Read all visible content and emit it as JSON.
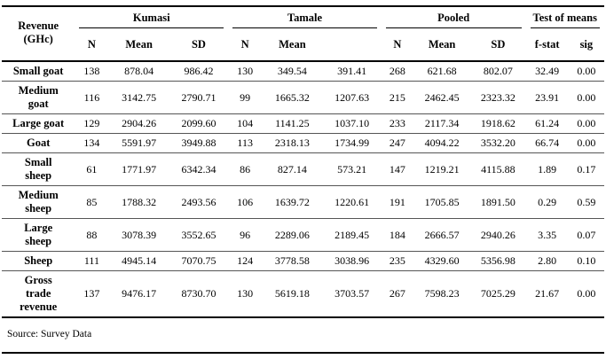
{
  "table": {
    "row_header": {
      "line1": "Revenue",
      "line2": "(GHc)"
    },
    "groups": [
      {
        "label": "Kumasi",
        "columns": [
          "N",
          "Mean",
          "SD"
        ]
      },
      {
        "label": "Tamale",
        "columns": [
          "N",
          "Mean",
          ""
        ]
      },
      {
        "label": "Pooled",
        "columns": [
          "N",
          "Mean",
          "SD"
        ]
      },
      {
        "label": "Test of means",
        "columns": [
          "f-stat",
          "sig"
        ]
      }
    ],
    "rows": [
      {
        "label": "Small goat",
        "label_lines": [
          "Small goat"
        ],
        "values": [
          "138",
          "878.04",
          "986.42",
          "130",
          "349.54",
          "391.41",
          "268",
          "621.68",
          "802.07",
          "32.49",
          "0.00"
        ]
      },
      {
        "label": "Medium goat",
        "label_lines": [
          "Medium",
          "goat"
        ],
        "values": [
          "116",
          "3142.75",
          "2790.71",
          "99",
          "1665.32",
          "1207.63",
          "215",
          "2462.45",
          "2323.32",
          "23.91",
          "0.00"
        ]
      },
      {
        "label": "Large goat",
        "label_lines": [
          "Large goat"
        ],
        "values": [
          "129",
          "2904.26",
          "2099.60",
          "104",
          "1141.25",
          "1037.10",
          "233",
          "2117.34",
          "1918.62",
          "61.24",
          "0.00"
        ]
      },
      {
        "label": "Goat",
        "label_lines": [
          "Goat"
        ],
        "values": [
          "134",
          "5591.97",
          "3949.88",
          "113",
          "2318.13",
          "1734.99",
          "247",
          "4094.22",
          "3532.20",
          "66.74",
          "0.00"
        ]
      },
      {
        "label": "Small sheep",
        "label_lines": [
          "Small",
          "sheep"
        ],
        "values": [
          "61",
          "1771.97",
          "6342.34",
          "86",
          "827.14",
          "573.21",
          "147",
          "1219.21",
          "4115.88",
          "1.89",
          "0.17"
        ]
      },
      {
        "label": "Medium sheep",
        "label_lines": [
          "Medium",
          "sheep"
        ],
        "values": [
          "85",
          "1788.32",
          "2493.56",
          "106",
          "1639.72",
          "1220.61",
          "191",
          "1705.85",
          "1891.50",
          "0.29",
          "0.59"
        ]
      },
      {
        "label": "Large sheep",
        "label_lines": [
          "Large",
          "sheep"
        ],
        "values": [
          "88",
          "3078.39",
          "3552.65",
          "96",
          "2289.06",
          "2189.45",
          "184",
          "2666.57",
          "2940.26",
          "3.35",
          "0.07"
        ]
      },
      {
        "label": "Sheep",
        "label_lines": [
          "Sheep"
        ],
        "values": [
          "111",
          "4945.14",
          "7070.75",
          "124",
          "3778.58",
          "3038.96",
          "235",
          "4329.60",
          "5356.98",
          "2.80",
          "0.10"
        ]
      },
      {
        "label": "Gross trade revenue",
        "label_lines": [
          "Gross",
          "trade",
          "revenue"
        ],
        "values": [
          "137",
          "9476.17",
          "8730.70",
          "130",
          "5619.18",
          "3703.57",
          "267",
          "7598.23",
          "7025.29",
          "21.67",
          "0.00"
        ]
      }
    ],
    "source": "Source: Survey Data"
  }
}
